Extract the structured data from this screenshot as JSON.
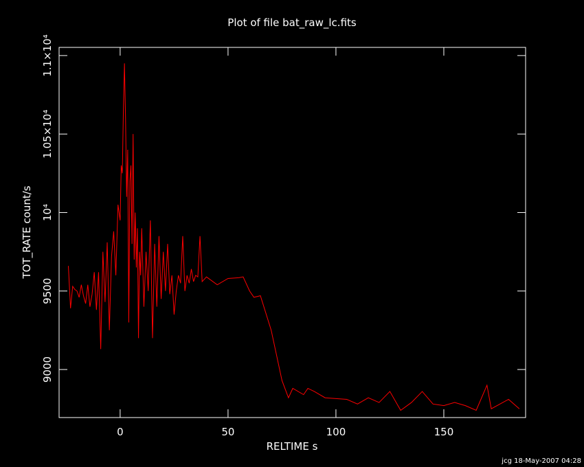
{
  "chart_data": {
    "type": "line",
    "title": "Plot of file bat_raw_lc.fits",
    "x_label": "RELTIME  s",
    "y_label": "TOT_RATE  count/s",
    "footer": "jcg 18-May-2007 04:28",
    "xlim": [
      -28.3,
      187.9
    ],
    "ylim": [
      8694,
      11052
    ],
    "xticks": [
      0,
      50,
      100,
      150
    ],
    "yticks": [
      9000,
      9500,
      {
        "value": 10000,
        "label": "10⁴"
      },
      {
        "value": 10500,
        "label": "1.05×10⁴"
      },
      {
        "value": 11000,
        "label": "1.1×10⁴"
      }
    ],
    "background": "#000000",
    "axis_color": "#ffffff",
    "series": [
      {
        "color": "#ff0000",
        "x": [
          -24,
          -23,
          -22,
          -21,
          -20,
          -19,
          -18,
          -17,
          -16,
          -15,
          -14,
          -13,
          -12,
          -11,
          -10,
          -9,
          -8,
          -7,
          -6,
          -5,
          -4,
          -3,
          -2,
          -1,
          0,
          0.5,
          1,
          1.5,
          2,
          2.5,
          3,
          3.5,
          4,
          4.5,
          5,
          5.5,
          6,
          6.5,
          7,
          7.5,
          8,
          8.5,
          9,
          9.5,
          10,
          11,
          12,
          13,
          14,
          15,
          16,
          17,
          18,
          19,
          20,
          21,
          22,
          23,
          24,
          25,
          26,
          27,
          28,
          29,
          30,
          31,
          32,
          33,
          34,
          35,
          36,
          37,
          38,
          40,
          45,
          50,
          55,
          57,
          60,
          62,
          65,
          70,
          75,
          78,
          80,
          85,
          87,
          90,
          95,
          100,
          105,
          110,
          115,
          120,
          125,
          130,
          135,
          140,
          145,
          150,
          155,
          160,
          165,
          170,
          172,
          180,
          185
        ],
        "values": [
          9660,
          9390,
          9530,
          9510,
          9500,
          9460,
          9540,
          9470,
          9420,
          9540,
          9400,
          9480,
          9620,
          9380,
          9620,
          9130,
          9750,
          9430,
          9810,
          9250,
          9720,
          9880,
          9600,
          10050,
          9950,
          10300,
          10250,
          10650,
          10950,
          10600,
          10100,
          10400,
          9300,
          10200,
          10300,
          9800,
          10500,
          9700,
          10000,
          9650,
          9900,
          9200,
          9750,
          9600,
          9900,
          9400,
          9750,
          9500,
          9950,
          9200,
          9800,
          9400,
          9850,
          9450,
          9750,
          9500,
          9800,
          9480,
          9600,
          9350,
          9500,
          9600,
          9550,
          9850,
          9500,
          9600,
          9550,
          9640,
          9560,
          9600,
          9590,
          9850,
          9560,
          9590,
          9540,
          9580,
          9585,
          9590,
          9500,
          9460,
          9470,
          9250,
          8930,
          8820,
          8880,
          8840,
          8880,
          8860,
          8820,
          8815,
          8810,
          8780,
          8820,
          8790,
          8860,
          8740,
          8790,
          8860,
          8780,
          8770,
          8790,
          8770,
          8740,
          8900,
          8750,
          8810,
          8750
        ]
      }
    ]
  }
}
